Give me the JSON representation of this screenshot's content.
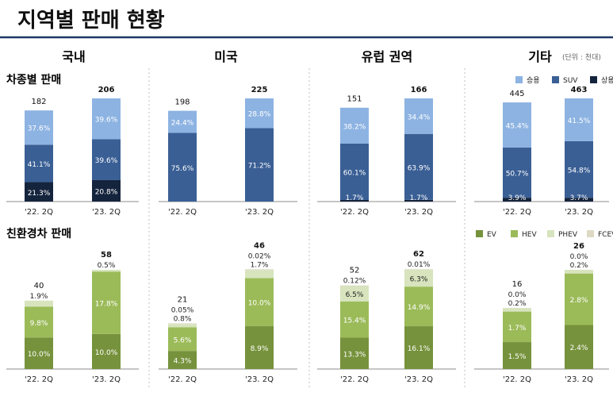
{
  "page": {
    "title": "지역별 판매 현황",
    "unit_note": "(단위 : 천대)"
  },
  "regions": [
    "국내",
    "미국",
    "유럽 권역",
    "기타"
  ],
  "period_labels": [
    "'22. 2Q",
    "'23. 2Q"
  ],
  "sections": {
    "vehicle": {
      "title": "차종별 판매"
    },
    "eco": {
      "title": "친환경차 판매"
    }
  },
  "legends": {
    "vehicle": [
      {
        "name": "승용",
        "color": "#8db3e2"
      },
      {
        "name": "SUV",
        "color": "#3a5f95"
      },
      {
        "name": "상용",
        "color": "#15243d"
      }
    ],
    "eco": [
      {
        "name": "EV",
        "color": "#76923c"
      },
      {
        "name": "HEV",
        "color": "#9bbb59"
      },
      {
        "name": "PHEV",
        "color": "#d7e4bd"
      },
      {
        "name": "FCEV",
        "color": "#ddd9c3"
      }
    ]
  },
  "colors": {
    "divider": "#1f3864",
    "dotted": "#bfbfbf",
    "baseline": "#8c8c8c"
  },
  "chart_data": [
    {
      "type": "bar",
      "stacked": true,
      "section": "차종별 판매",
      "region": "국내",
      "categories": [
        "'22. 2Q",
        "'23. 2Q"
      ],
      "totals": [
        182,
        206
      ],
      "series": [
        {
          "name": "상용",
          "share_labels": [
            "21.3%",
            "20.8%"
          ]
        },
        {
          "name": "SUV",
          "share_labels": [
            "41.1%",
            "39.6%"
          ]
        },
        {
          "name": "승용",
          "share_labels": [
            "37.6%",
            "39.6%"
          ]
        }
      ]
    },
    {
      "type": "bar",
      "stacked": true,
      "section": "차종별 판매",
      "region": "미국",
      "categories": [
        "'22. 2Q",
        "'23. 2Q"
      ],
      "totals": [
        198,
        225
      ],
      "series": [
        {
          "name": "SUV",
          "share_labels": [
            "75.6%",
            "71.2%"
          ]
        },
        {
          "name": "승용",
          "share_labels": [
            "24.4%",
            "28.8%"
          ]
        }
      ]
    },
    {
      "type": "bar",
      "stacked": true,
      "section": "차종별 판매",
      "region": "유럽 권역",
      "categories": [
        "'22. 2Q",
        "'23. 2Q"
      ],
      "totals": [
        151,
        166
      ],
      "series": [
        {
          "name": "상용",
          "share_labels": [
            "1.7%",
            "1.7%"
          ]
        },
        {
          "name": "SUV",
          "share_labels": [
            "60.1%",
            "63.9%"
          ]
        },
        {
          "name": "승용",
          "share_labels": [
            "38.2%",
            "34.4%"
          ]
        }
      ]
    },
    {
      "type": "bar",
      "stacked": true,
      "section": "차종별 판매",
      "region": "기타",
      "categories": [
        "'22. 2Q",
        "'23. 2Q"
      ],
      "totals": [
        445,
        463
      ],
      "series": [
        {
          "name": "상용",
          "share_labels": [
            "3.9%",
            "3.7%"
          ]
        },
        {
          "name": "SUV",
          "share_labels": [
            "50.7%",
            "54.8%"
          ]
        },
        {
          "name": "승용",
          "share_labels": [
            "45.4%",
            "41.5%"
          ]
        }
      ]
    },
    {
      "type": "bar",
      "stacked": true,
      "section": "친환경차 판매",
      "region": "국내",
      "categories": [
        "'22. 2Q",
        "'23. 2Q"
      ],
      "totals": [
        40,
        58
      ],
      "series": [
        {
          "name": "EV",
          "share_labels": [
            "10.0%",
            "10.0%"
          ]
        },
        {
          "name": "HEV",
          "share_labels": [
            "9.8%",
            "17.8%"
          ]
        },
        {
          "name": "PHEV",
          "share_labels": [
            "1.9%",
            "0.5%"
          ]
        }
      ]
    },
    {
      "type": "bar",
      "stacked": true,
      "section": "친환경차 판매",
      "region": "미국",
      "categories": [
        "'22. 2Q",
        "'23. 2Q"
      ],
      "totals": [
        21,
        46
      ],
      "series": [
        {
          "name": "EV",
          "share_labels": [
            "4.3%",
            "8.9%"
          ]
        },
        {
          "name": "HEV",
          "share_labels": [
            "5.6%",
            "10.0%"
          ]
        },
        {
          "name": "PHEV",
          "share_labels": [
            "0.8%",
            "1.7%"
          ]
        },
        {
          "name": "FCEV",
          "share_labels": [
            "0.05%",
            "0.02%"
          ]
        }
      ]
    },
    {
      "type": "bar",
      "stacked": true,
      "section": "친환경차 판매",
      "region": "유럽 권역",
      "categories": [
        "'22. 2Q",
        "'23. 2Q"
      ],
      "totals": [
        52,
        62
      ],
      "series": [
        {
          "name": "EV",
          "share_labels": [
            "13.3%",
            "16.1%"
          ]
        },
        {
          "name": "HEV",
          "share_labels": [
            "15.4%",
            "14.9%"
          ]
        },
        {
          "name": "PHEV",
          "share_labels": [
            "6.5%",
            "6.3%"
          ]
        },
        {
          "name": "FCEV",
          "share_labels": [
            "0.12%",
            "0.01%"
          ]
        }
      ]
    },
    {
      "type": "bar",
      "stacked": true,
      "section": "친환경차 판매",
      "region": "기타",
      "categories": [
        "'22. 2Q",
        "'23. 2Q"
      ],
      "totals": [
        16,
        26
      ],
      "series": [
        {
          "name": "EV",
          "share_labels": [
            "1.5%",
            "2.4%"
          ]
        },
        {
          "name": "HEV",
          "share_labels": [
            "1.7%",
            "2.8%"
          ]
        },
        {
          "name": "PHEV",
          "share_labels": [
            "0.2%",
            "0.2%"
          ]
        },
        {
          "name": "FCEV",
          "share_labels": [
            "0.0%",
            "0.0%"
          ]
        }
      ]
    }
  ]
}
